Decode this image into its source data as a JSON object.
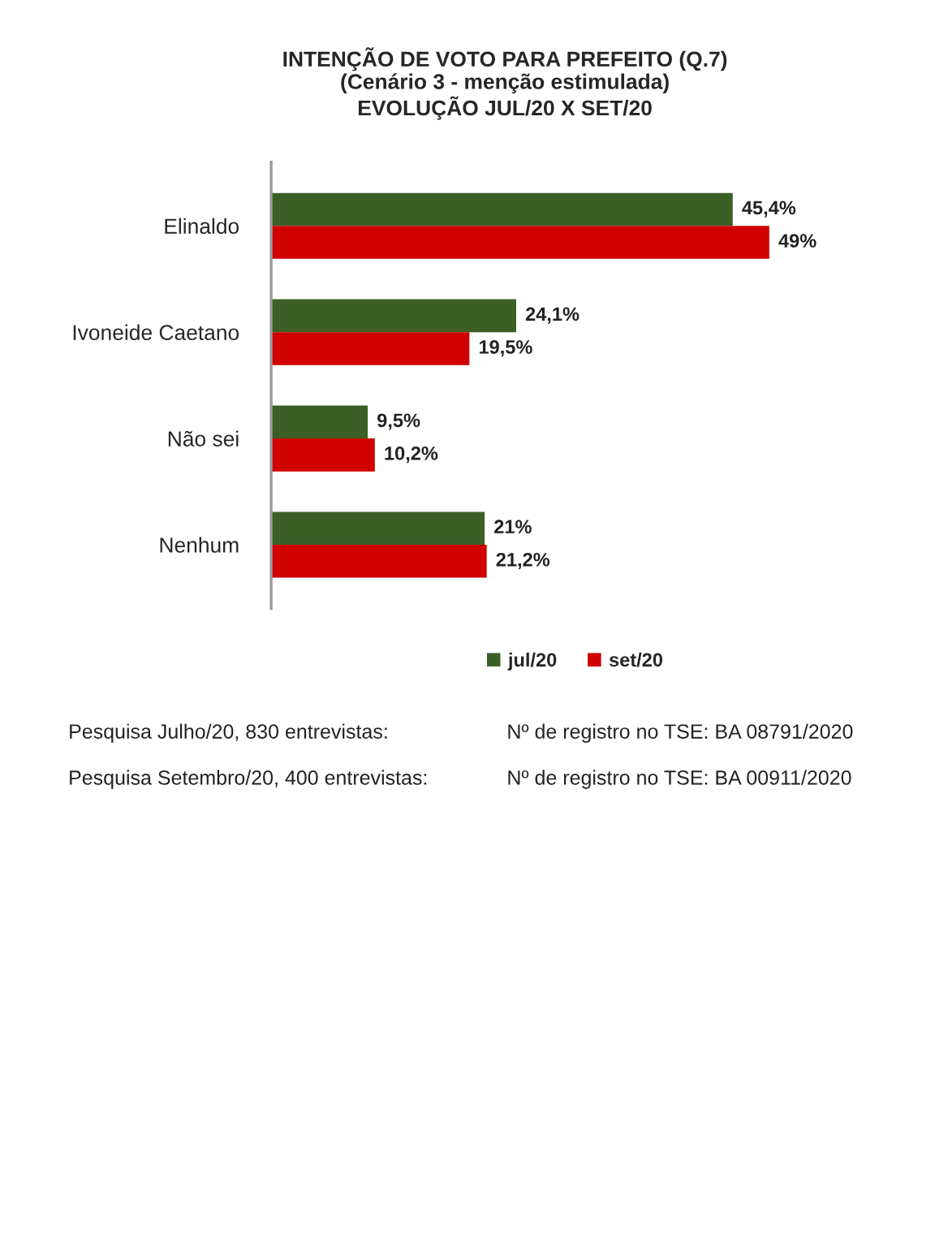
{
  "chart_data": {
    "type": "bar",
    "orientation": "horizontal",
    "title": "INTENÇÃO DE VOTO PARA PREFEITO (Q.7)\n(Cenário 3 - menção estimulada)\nEVOLUÇÃO JUL/20 X SET/20",
    "categories": [
      "Elinaldo",
      "Ivoneide Caetano",
      "Não sei",
      "Nenhum"
    ],
    "series": [
      {
        "name": "jul/20",
        "color": "#3c5f26",
        "values": [
          45.4,
          24.1,
          9.5,
          21
        ],
        "value_labels": [
          "45,4%",
          "24,1%",
          "9,5%",
          "21%"
        ]
      },
      {
        "name": "set/20",
        "color": "#d00000",
        "values": [
          49,
          19.5,
          10.2,
          21.2
        ],
        "value_labels": [
          "49%",
          "19,5%",
          "10,2%",
          "21,2%"
        ]
      }
    ],
    "legend": "bottom",
    "annotations": [
      "Pesquisa Julho/20, 830 entrevistas:",
      "Nº de registro no TSE: BA 08791/2020",
      "Pesquisa Setembro/20, 400 entrevistas:",
      "Nº de registro no TSE: BA 00911/2020"
    ]
  }
}
